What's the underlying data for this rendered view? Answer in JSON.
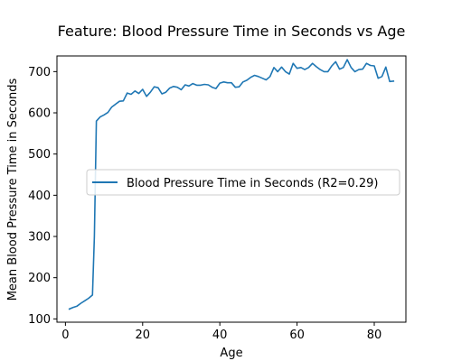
{
  "chart_data": {
    "type": "line",
    "title": "Feature: Blood Pressure Time in Seconds vs Age",
    "xlabel": "Age",
    "ylabel": "Mean Blood Pressure Time in Seconds",
    "xlim": [
      -2.2,
      88.2
    ],
    "ylim": [
      92,
      738
    ],
    "xticks": [
      0,
      20,
      40,
      60,
      80
    ],
    "yticks": [
      100,
      200,
      300,
      400,
      500,
      600,
      700
    ],
    "legend_position": "center-left",
    "series": [
      {
        "name": "Blood Pressure Time in Seconds (R2=0.29)",
        "color": "#1f77b4",
        "x": [
          1,
          2,
          3,
          4,
          5,
          6,
          7,
          7.5,
          8,
          9,
          10,
          11,
          12,
          13,
          14,
          15,
          16,
          17,
          18,
          19,
          20,
          21,
          22,
          23,
          24,
          25,
          26,
          27,
          28,
          29,
          30,
          31,
          32,
          33,
          34,
          35,
          36,
          37,
          38,
          39,
          40,
          41,
          42,
          43,
          44,
          45,
          46,
          47,
          48,
          49,
          50,
          51,
          52,
          53,
          54,
          55,
          56,
          57,
          58,
          59,
          60,
          61,
          62,
          63,
          64,
          65,
          66,
          67,
          68,
          69,
          70,
          71,
          72,
          73,
          74,
          75,
          76,
          77,
          78,
          79,
          80,
          81,
          82,
          83,
          84,
          85
        ],
        "y": [
          124,
          128,
          131,
          138,
          144,
          150,
          158,
          300,
          580,
          590,
          595,
          601,
          614,
          621,
          628,
          629,
          648,
          645,
          653,
          647,
          657,
          640,
          650,
          663,
          661,
          646,
          650,
          660,
          664,
          662,
          656,
          668,
          665,
          671,
          667,
          667,
          669,
          668,
          662,
          659,
          672,
          675,
          673,
          673,
          662,
          663,
          675,
          679,
          686,
          691,
          688,
          684,
          680,
          688,
          710,
          700,
          711,
          700,
          694,
          720,
          708,
          710,
          705,
          710,
          720,
          712,
          705,
          700,
          700,
          714,
          724,
          706,
          710,
          729,
          710,
          700,
          705,
          706,
          720,
          715,
          714,
          684,
          688,
          711,
          676,
          677
        ]
      }
    ]
  }
}
